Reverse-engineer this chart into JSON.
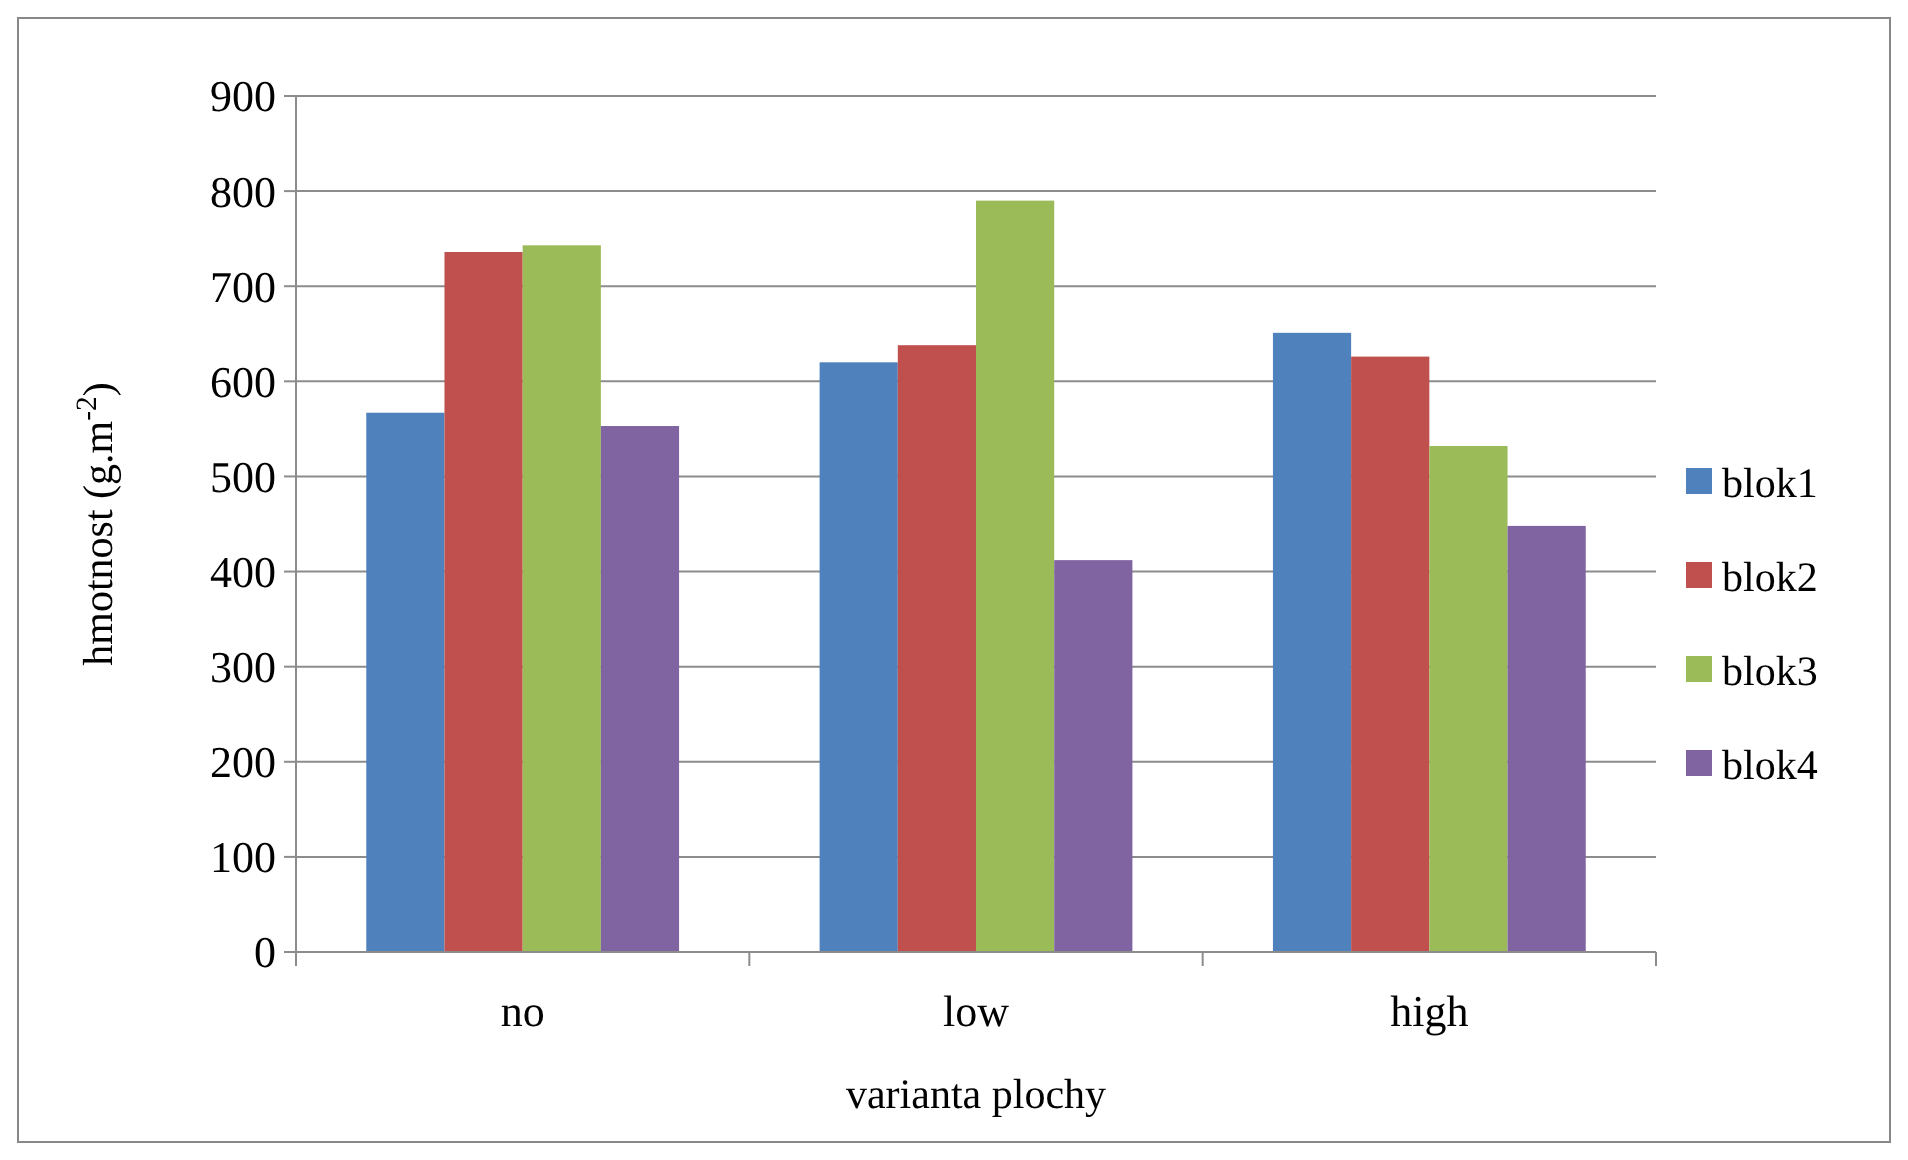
{
  "chart_data": {
    "type": "bar",
    "xlabel": "varianta plochy",
    "ylabel": "hmotnost (g.m$^{-2}$)",
    "categories": [
      "no",
      "low",
      "high"
    ],
    "series": [
      {
        "name": "blok1",
        "color": "#4f81bd",
        "values": [
          567,
          620,
          651
        ]
      },
      {
        "name": "blok2",
        "color": "#c0504d",
        "values": [
          736,
          638,
          626
        ]
      },
      {
        "name": "blok3",
        "color": "#9bbb59",
        "values": [
          743,
          790,
          532
        ]
      },
      {
        "name": "blok4",
        "color": "#8064a2",
        "values": [
          553,
          412,
          448
        ]
      }
    ],
    "ylim": [
      0,
      900
    ],
    "yticks": [
      0,
      100,
      200,
      300,
      400,
      500,
      600,
      700,
      800,
      900
    ],
    "grid": "y",
    "legend": "right"
  }
}
